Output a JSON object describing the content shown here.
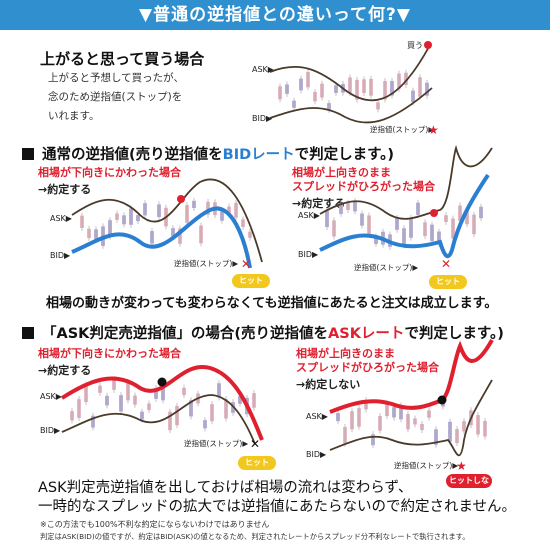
{
  "banner": {
    "title": "▼普通の逆指値との違いって何?▼"
  },
  "intro": {
    "heading": "上がると思って買う場合",
    "lines": [
      "上がると予想して買ったが、",
      "念のため逆指値(ストップ)を",
      "いれます。"
    ],
    "chart_labels": {
      "ask": "ASK▶",
      "bid": "BID▶",
      "buy": "買う",
      "stop": "逆指値(ストップ)▶"
    }
  },
  "section1": {
    "title_pre": "通常の逆指値(売り逆指値を",
    "title_hl": "BIDレート",
    "title_post": "で判定します。)",
    "left": {
      "note1": "相場が下向きにかわった場合",
      "note2": "→約定する",
      "ask": "ASK▶",
      "bid": "BID▶",
      "stop": "逆指値(ストップ)▶",
      "badge": "ヒット"
    },
    "right": {
      "note1": "相場が上向きのまま",
      "note2": "スプレッドがひろがった場合",
      "note3": "→約定する",
      "ask": "ASK▶",
      "bid": "BID▶",
      "stop": "逆指値(ストップ)▶",
      "badge": "ヒット"
    },
    "summary": "相場の動きが変わっても変わらなくても逆指値にあたると注文は成立します。"
  },
  "section2": {
    "title_pre": "「ASK判定売逆指値」の場合(売り逆指値を",
    "title_hl": "ASKレート",
    "title_post": "で判定します。)",
    "left": {
      "note1": "相場が下向きにかわった場合",
      "note2": "→約定する",
      "ask": "ASK▶",
      "bid": "BID▶",
      "stop": "逆指値(ストップ)▶",
      "badge": "ヒット"
    },
    "right": {
      "note1": "相場が上向きのまま",
      "note2": "スプレッドがひろがった場合",
      "note3": "→約定しない",
      "ask": "ASK▶",
      "bid": "BID▶",
      "stop": "逆指値(ストップ)▶",
      "badge": "ヒットしない"
    }
  },
  "conclusion": {
    "line1": "ASK判定売逆指値を出しておけば相場の流れは変わらず、",
    "line2": "一時的なスプレッドの拡大では逆指値にあたらないので約定されません。"
  },
  "footnotes": {
    "note1": "※この方法でも100%不利な約定にならないわけではありません",
    "note2": "判定はASK(BID)の値ですが、約定はBID(ASK)の値となるため、判定されたレートからスプレッド分不利なレートで執行されます。"
  },
  "colors": {
    "banner": "#2f8fcf",
    "bid_line": "#2a7fd0",
    "ask_line_highlight": "#e0202f",
    "curve": "#4a3a2a",
    "candle_up": "#b8b0d8",
    "candle_down": "#e8b8c4",
    "hit_badge": "#f2c81e"
  }
}
